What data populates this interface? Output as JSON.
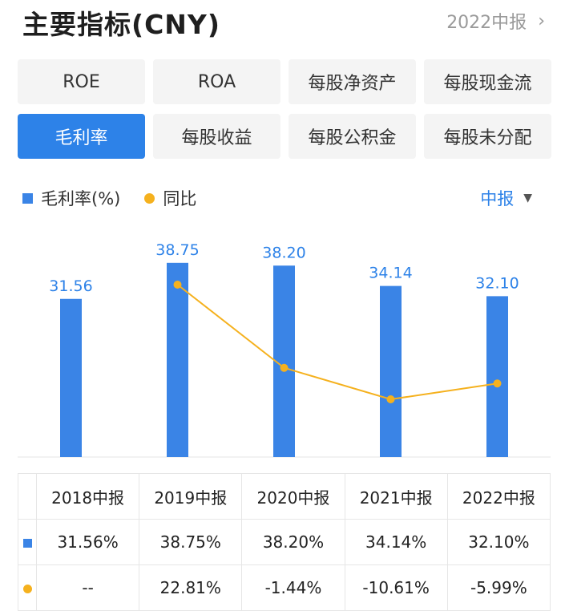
{
  "header": {
    "title": "主要指标(CNY)",
    "period": "2022中报"
  },
  "tabs": [
    {
      "label": "ROE",
      "active": false
    },
    {
      "label": "ROA",
      "active": false
    },
    {
      "label": "每股净资产",
      "active": false
    },
    {
      "label": "每股现金流",
      "active": false
    },
    {
      "label": "毛利率",
      "active": true
    },
    {
      "label": "每股收益",
      "active": false
    },
    {
      "label": "每股公积金",
      "active": false
    },
    {
      "label": "每股未分配",
      "active": false
    }
  ],
  "legend": {
    "series1": "毛利率(%)",
    "series2": "同比",
    "report_type": "中报"
  },
  "colors": {
    "bar": "#3a84e6",
    "line": "#f5b11e",
    "accent": "#2d82e8",
    "negative": "#1f9e4a",
    "positive": "#e04343"
  },
  "chart_data": {
    "type": "bar",
    "categories": [
      "2018中报",
      "2019中报",
      "2020中报",
      "2021中报",
      "2022中报"
    ],
    "series": [
      {
        "name": "毛利率(%)",
        "type": "bar",
        "values": [
          31.56,
          38.75,
          38.2,
          34.14,
          32.1
        ],
        "labels": [
          "31.56",
          "38.75",
          "38.20",
          "34.14",
          "32.10"
        ]
      },
      {
        "name": "同比",
        "type": "line",
        "values": [
          null,
          22.81,
          -1.44,
          -10.61,
          -5.99
        ]
      }
    ],
    "grid": false
  },
  "table": {
    "headers": [
      "2018中报",
      "2019中报",
      "2020中报",
      "2021中报",
      "2022中报"
    ],
    "row_values": [
      "31.56%",
      "38.75%",
      "38.20%",
      "34.14%",
      "32.10%"
    ],
    "row_yoy": [
      "--",
      "22.81%",
      "-1.44%",
      "-10.61%",
      "-5.99%"
    ]
  }
}
